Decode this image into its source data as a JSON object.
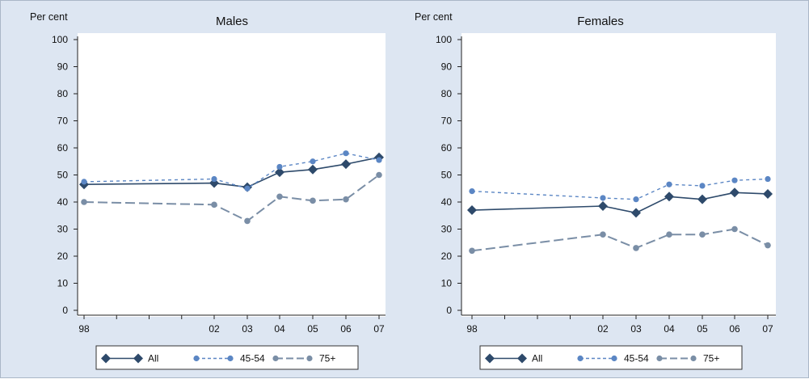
{
  "chart_data": [
    {
      "type": "line",
      "title": "Males",
      "ylabel": "Per cent",
      "ylim": [
        0,
        100
      ],
      "yticks": [
        "0",
        "10",
        "20",
        "30",
        "40",
        "50",
        "60",
        "70",
        "80",
        "90",
        "100"
      ],
      "x": [
        1998,
        2002,
        2003,
        2004,
        2005,
        2006,
        2007
      ],
      "xtick_labels": [
        "98",
        "02",
        "03",
        "04",
        "05",
        "06",
        "07"
      ],
      "series": [
        {
          "name": "All",
          "style": "solid-diamond",
          "color": "#2e4a6b",
          "values": [
            46.5,
            47,
            45.5,
            51,
            52,
            54,
            56.5
          ]
        },
        {
          "name": "45-54",
          "style": "dashed-dot",
          "color": "#5b86c4",
          "values": [
            47.5,
            48.5,
            45,
            53,
            55,
            58,
            55.5
          ]
        },
        {
          "name": "75+",
          "style": "longdash-dot",
          "color": "#7a8ea6",
          "values": [
            40,
            39,
            33,
            42,
            40.5,
            41,
            50
          ]
        }
      ],
      "legend": "bottom"
    },
    {
      "type": "line",
      "title": "Females",
      "ylabel": "Per cent",
      "ylim": [
        0,
        100
      ],
      "yticks": [
        "0",
        "10",
        "20",
        "30",
        "40",
        "50",
        "60",
        "70",
        "80",
        "90",
        "100"
      ],
      "x": [
        1998,
        2002,
        2003,
        2004,
        2005,
        2006,
        2007
      ],
      "xtick_labels": [
        "98",
        "02",
        "03",
        "04",
        "05",
        "06",
        "07"
      ],
      "series": [
        {
          "name": "All",
          "style": "solid-diamond",
          "color": "#2e4a6b",
          "values": [
            37,
            38.5,
            36,
            42,
            41,
            43.5,
            43
          ]
        },
        {
          "name": "45-54",
          "style": "dashed-dot",
          "color": "#5b86c4",
          "values": [
            44,
            41.5,
            41,
            46.5,
            46,
            48,
            48.5
          ]
        },
        {
          "name": "75+",
          "style": "longdash-dot",
          "color": "#7a8ea6",
          "values": [
            22,
            28,
            23,
            28,
            28,
            30,
            24
          ]
        }
      ],
      "legend": "bottom"
    }
  ]
}
